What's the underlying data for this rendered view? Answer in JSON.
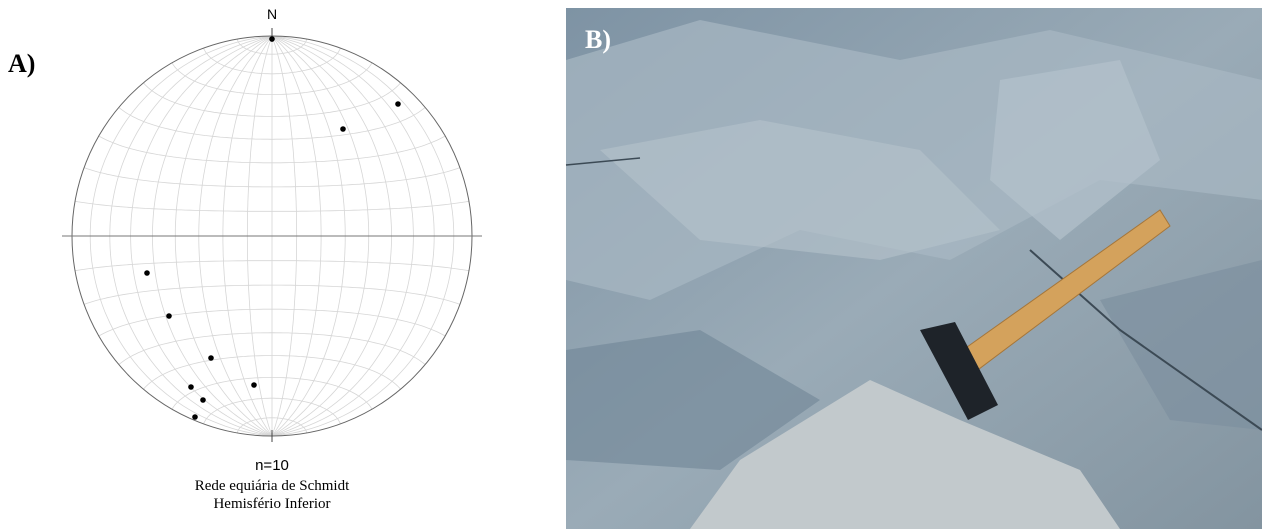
{
  "chart_data": {
    "type": "scatter",
    "panel_label": "A)",
    "north_label": "N",
    "annotation": "n=10",
    "caption": [
      "Rede equiária de Schmidt",
      "Hemisfério Inferior"
    ],
    "x": [
      0,
      0.63,
      0.355,
      -0.625,
      -0.515,
      -0.305,
      -0.09,
      -0.405,
      -0.345,
      -0.385
    ],
    "y": [
      0.985,
      0.66,
      0.535,
      -0.185,
      -0.4,
      -0.61,
      -0.745,
      -0.755,
      -0.82,
      -0.905
    ],
    "xlim": [
      -1,
      1
    ],
    "ylim": [
      -1,
      1
    ],
    "color": "#000000",
    "grid": true
  },
  "photo": {
    "panel_label": "B)"
  }
}
